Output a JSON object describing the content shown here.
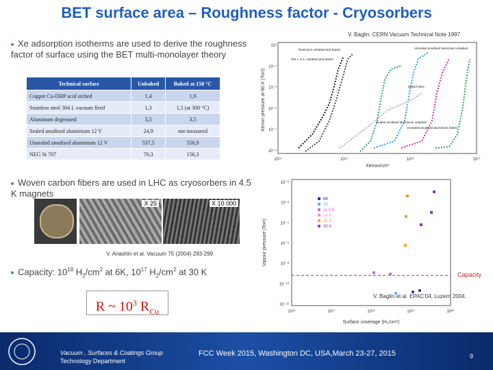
{
  "title": "BET surface area – Roughness factor - Cryosorbers",
  "bullets": [
    {
      "text": "Xe adsorption isotherms are used to derive the roughness factor of surface using the BET multi-monolayer theory"
    },
    {
      "text": "Woven carbon fibers are used in LHC as cryosorbers in 4.5 K magnets"
    }
  ],
  "capacity": {
    "lead": "Capacity: 10",
    "exp1": "18",
    "h1": " H",
    "sub1": "2",
    "cm1": "/cm",
    "sq1": "2",
    "mid": " at 6K,  10",
    "exp2": "17",
    "h2": " H",
    "sub2": "2",
    "cm2": "/cm",
    "sq2": "2",
    "tail": " at 30 K"
  },
  "table": {
    "header": [
      "Technical surface",
      "Unbaked",
      "Baked at 150 °C"
    ],
    "rows": [
      [
        "Copper Cu-DHP acid etched",
        "1,4",
        "1,9"
      ],
      [
        "Stainless steel 304 L vacuum fired",
        "1,3",
        "1,5 (at 300 °C)"
      ],
      [
        "Aluminum degreased",
        "3,5",
        "3,5"
      ],
      [
        "Sealed anodised aluminium 12 V",
        "24,9",
        "not measured"
      ],
      [
        "Unsealed anodised aluminium 12 V",
        "537,5",
        "556,9"
      ],
      [
        "NEG St 707",
        "70,3",
        "156,3"
      ]
    ]
  },
  "citations": {
    "baglin_note": "V. Baglin. CERN Vacuum Technical Note 1997",
    "anashin": "V. Anashin et al. Vacuum 75 (2004) 293-299",
    "epac": "V. Baglin et al. EPAC'04, Luzern 2004."
  },
  "photos": {
    "left_scale": "X 25",
    "right_scale": "X 10 000"
  },
  "ratio": {
    "lead": "R ~ 10",
    "exp": "3",
    "mid": " R",
    "sub": "Cu"
  },
  "xenon_plot": {
    "y_label": "Xenon pressure at 80 K (Torr)",
    "x_label": "Xenon/cm²",
    "yticks": [
      "10¹",
      "10⁻¹",
      "10⁻³",
      "10⁻⁵",
      "10⁻⁷",
      "10⁻⁹"
    ],
    "xticks": [
      "10¹⁴",
      "10¹⁵",
      "10¹⁶",
      "10¹⁷"
    ],
    "annotations": [
      "304 L S.S. unbaked and baked",
      "Aluminium unbaked and baked",
      "Unsealed anodised aluminium unbaked",
      "Unsealed anodised aluminium baked",
      "Baked NEG",
      "Sealed anodised aluminium unbaked"
    ]
  },
  "hydrogen_plot": {
    "y_label": "Vapour pressure (Torr)",
    "x_label": "Surface coverage (H₂/cm²)",
    "yticks": [
      "10⁻⁰",
      "10⁻²",
      "10⁻⁴",
      "10⁻⁶",
      "10⁻⁸",
      "10⁻¹⁰",
      "10⁻¹²"
    ],
    "xticks": [
      "10¹⁶",
      "10¹⁷",
      "10¹⁸",
      "10¹⁹",
      "10²⁰"
    ],
    "legend": [
      {
        "name": "6K",
        "color": "#1a2a9a"
      },
      {
        "name": "7K",
        "color": "#55aaff"
      },
      {
        "name": "11.5 K",
        "color": "#cc66cc"
      },
      {
        "name": "14 K",
        "color": "#ff88cc"
      },
      {
        "name": "22 K",
        "color": "#ff9933"
      },
      {
        "name": "30 K",
        "color": "#8833cc"
      }
    ],
    "capacity_label": "Capacity"
  },
  "footer": {
    "group": "Vacuum , Surfaces & Coatings Group",
    "department": "Technology Department",
    "event": "FCC Week 2015, Washington DC, USA,March 23-27, 2015",
    "page": "9"
  }
}
